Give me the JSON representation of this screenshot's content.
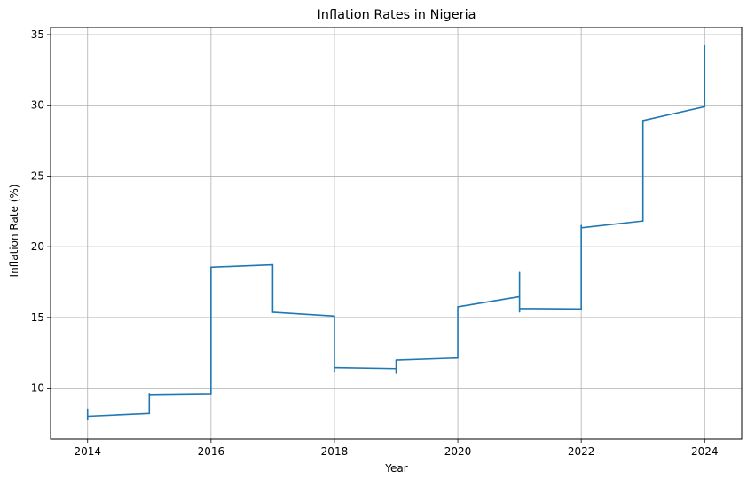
{
  "chart_data": {
    "type": "line",
    "title": "Inflation Rates in Nigeria",
    "xlabel": "Year",
    "ylabel": "Inflation Rate (%)",
    "xlim": [
      2013.4,
      2024.6
    ],
    "ylim": [
      6.4,
      35.5
    ],
    "xticks": [
      2014,
      2016,
      2018,
      2020,
      2022,
      2024
    ],
    "yticks": [
      10,
      15,
      20,
      25,
      30,
      35
    ],
    "xtick_labels": [
      "2014",
      "2016",
      "2018",
      "2020",
      "2022",
      "2024"
    ],
    "ytick_labels": [
      "10",
      "15",
      "20",
      "25",
      "30",
      "35"
    ],
    "grid": true,
    "color": "#1f77b4",
    "series": [
      {
        "x": [
          2014,
          2014,
          2014,
          2015,
          2015,
          2015,
          2016,
          2016,
          2017,
          2017,
          2018,
          2018,
          2018,
          2019,
          2019,
          2019,
          2020,
          2020,
          2021,
          2021,
          2021,
          2021,
          2022,
          2022,
          2022,
          2023,
          2023,
          2024,
          2024
        ],
        "y": [
          7.8,
          8.5,
          8.0,
          8.2,
          9.6,
          9.55,
          9.6,
          18.55,
          18.72,
          15.37,
          15.1,
          11.2,
          11.44,
          11.37,
          11.05,
          11.98,
          12.13,
          15.75,
          16.47,
          18.17,
          15.4,
          15.63,
          15.6,
          21.5,
          21.34,
          21.82,
          28.92,
          29.9,
          34.2
        ]
      }
    ]
  }
}
